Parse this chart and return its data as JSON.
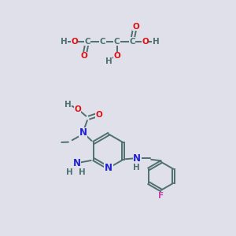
{
  "bg_color": "#dfe0ea",
  "bond_color": "#507070",
  "bond_width": 1.4,
  "atom_colors": {
    "C": "#507070",
    "H": "#507070",
    "O": "#dd1111",
    "N": "#2222cc",
    "F": "#cc44aa"
  },
  "font_size": 7.5
}
